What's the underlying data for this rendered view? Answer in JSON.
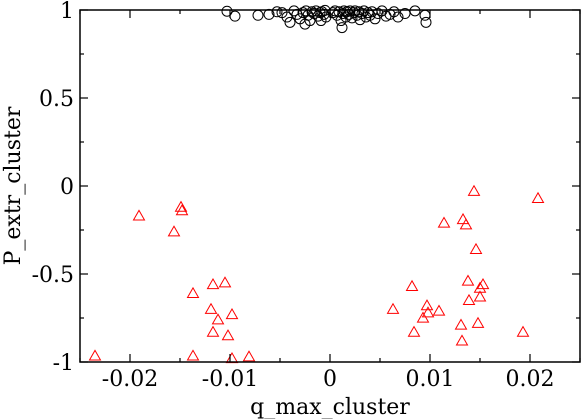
{
  "chart_data": {
    "type": "scatter",
    "xlabel": "q_max_cluster",
    "ylabel": "P_extr_cluster",
    "xlim": [
      -0.025,
      0.025
    ],
    "ylim": [
      -1,
      1
    ],
    "x_ticks": [
      -0.02,
      -0.01,
      0,
      0.01,
      0.02
    ],
    "x_tick_labels": [
      "-0.02",
      "-0.01",
      "0",
      "0.01",
      "0.02"
    ],
    "y_ticks": [
      -1,
      -0.5,
      0,
      0.5,
      1
    ],
    "y_tick_labels": [
      "-1",
      "-0.5",
      "0",
      "0.5",
      "1"
    ],
    "grid": false,
    "colors": {
      "circles": "#000000",
      "triangles": "#ff0000",
      "axes": "#000000"
    },
    "series": [
      {
        "marker": "circle",
        "color": "#000000",
        "points": [
          [
            -0.0103,
            0.993
          ],
          [
            -0.0095,
            0.965
          ],
          [
            -0.0072,
            0.97
          ],
          [
            -0.0061,
            0.975
          ],
          [
            -0.0053,
            0.99
          ],
          [
            -0.0048,
            0.985
          ],
          [
            -0.0043,
            0.96
          ],
          [
            -0.004,
            0.93
          ],
          [
            -0.0036,
            0.995
          ],
          [
            -0.0033,
            0.975
          ],
          [
            -0.003,
            0.95
          ],
          [
            -0.0027,
            0.985
          ],
          [
            -0.0024,
            0.995
          ],
          [
            -0.0022,
            0.97
          ],
          [
            -0.002,
            0.94
          ],
          [
            -0.0018,
            0.99
          ],
          [
            -0.0016,
            0.98
          ],
          [
            -0.0014,
            0.995
          ],
          [
            -0.0012,
            0.965
          ],
          [
            -0.001,
            0.985
          ],
          [
            -0.0009,
            0.94
          ],
          [
            -0.0008,
            0.99
          ],
          [
            -0.0006,
            0.975
          ],
          [
            -0.0005,
            0.998
          ],
          [
            -0.0004,
            0.96
          ],
          [
            0.0003,
            0.985
          ],
          [
            0.0005,
            0.995
          ],
          [
            0.0007,
            0.97
          ],
          [
            0.0009,
            0.99
          ],
          [
            0.0011,
            0.94
          ],
          [
            0.0013,
            0.98
          ],
          [
            0.0014,
            0.995
          ],
          [
            0.0016,
            0.96
          ],
          [
            0.0017,
            0.99
          ],
          [
            0.0019,
            0.975
          ],
          [
            0.002,
            0.995
          ],
          [
            0.0022,
            0.955
          ],
          [
            0.0024,
            0.985
          ],
          [
            0.0025,
            0.995
          ],
          [
            0.0027,
            0.97
          ],
          [
            0.0029,
            0.99
          ],
          [
            0.003,
            0.945
          ],
          [
            0.0032,
            0.98
          ],
          [
            0.0034,
            0.995
          ],
          [
            0.0036,
            0.96
          ],
          [
            0.0038,
            0.985
          ],
          [
            0.004,
            0.97
          ],
          [
            0.0042,
            0.99
          ],
          [
            0.0045,
            0.95
          ],
          [
            0.0048,
            0.98
          ],
          [
            0.0052,
            0.995
          ],
          [
            0.0056,
            0.965
          ],
          [
            0.006,
            0.975
          ],
          [
            0.0064,
            0.99
          ],
          [
            0.0068,
            0.96
          ],
          [
            0.0075,
            0.98
          ],
          [
            0.0085,
            0.995
          ],
          [
            0.0095,
            0.97
          ],
          [
            0.0096,
            0.93
          ],
          [
            0.0012,
            0.9
          ],
          [
            -0.0025,
            0.92
          ]
        ]
      },
      {
        "marker": "triangle",
        "color": "#ff0000",
        "points": [
          [
            -0.0235,
            -0.965
          ],
          [
            -0.0191,
            -0.17
          ],
          [
            -0.0156,
            -0.26
          ],
          [
            -0.0149,
            -0.12
          ],
          [
            -0.0148,
            -0.14
          ],
          [
            -0.0137,
            -0.61
          ],
          [
            -0.0137,
            -0.965
          ],
          [
            -0.0119,
            -0.7
          ],
          [
            -0.0117,
            -0.56
          ],
          [
            -0.0117,
            -0.83
          ],
          [
            -0.0112,
            -0.76
          ],
          [
            -0.0105,
            -0.55
          ],
          [
            -0.0102,
            -0.85
          ],
          [
            -0.0098,
            -0.73
          ],
          [
            -0.0098,
            -0.98
          ],
          [
            -0.0081,
            -0.97
          ],
          [
            0.0063,
            -0.7
          ],
          [
            0.0082,
            -0.57
          ],
          [
            0.0084,
            -0.83
          ],
          [
            0.0093,
            -0.75
          ],
          [
            0.0097,
            -0.68
          ],
          [
            0.0098,
            -0.72
          ],
          [
            0.0109,
            -0.71
          ],
          [
            0.0114,
            -0.21
          ],
          [
            0.0131,
            -0.79
          ],
          [
            0.0132,
            -0.88
          ],
          [
            0.0133,
            -0.19
          ],
          [
            0.0136,
            -0.22
          ],
          [
            0.0138,
            -0.54
          ],
          [
            0.0139,
            -0.65
          ],
          [
            0.0144,
            -0.03
          ],
          [
            0.0146,
            -0.36
          ],
          [
            0.0148,
            -0.78
          ],
          [
            0.015,
            -0.58
          ],
          [
            0.015,
            -0.63
          ],
          [
            0.0153,
            -0.56
          ],
          [
            0.0193,
            -0.83
          ],
          [
            0.0208,
            -0.07
          ]
        ]
      }
    ]
  }
}
